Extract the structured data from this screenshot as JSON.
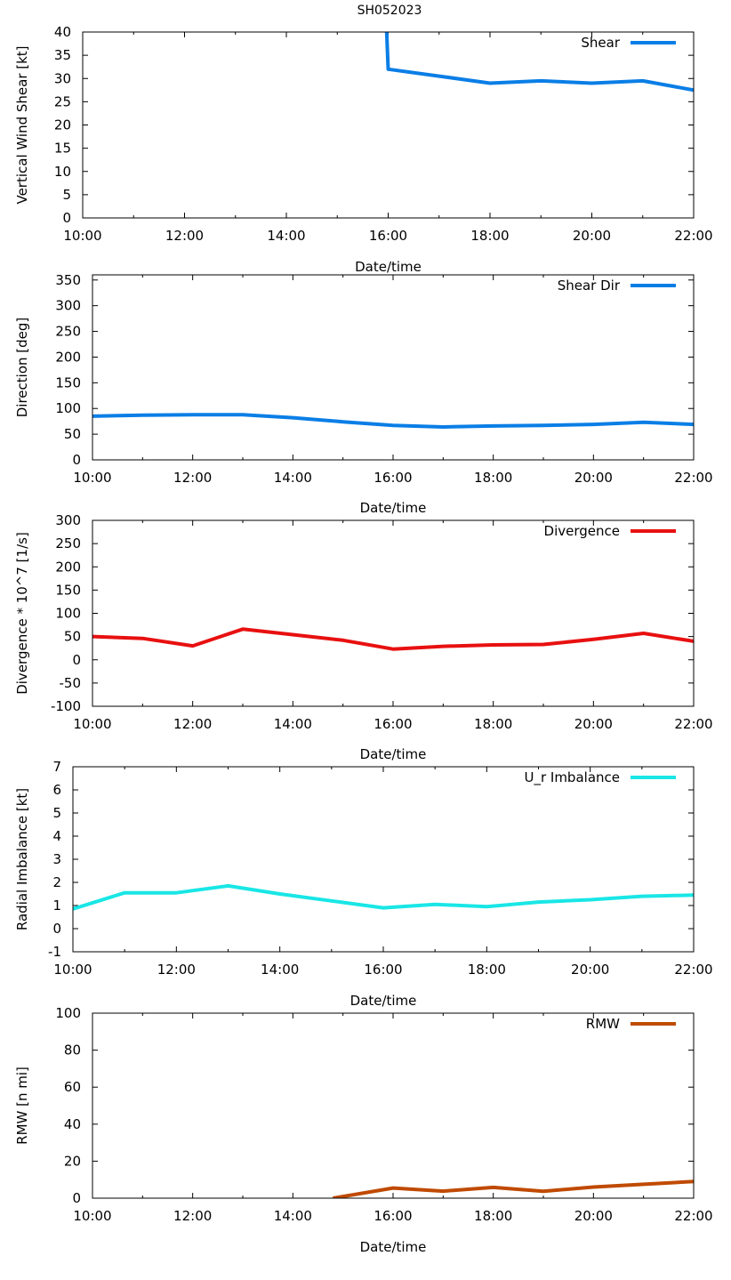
{
  "title": "SH052023",
  "chart_data": [
    {
      "type": "line",
      "title": "SH052023",
      "xlabel": "Date/time",
      "ylabel": "Vertical Wind Shear [kt]",
      "xlim": [
        10,
        22
      ],
      "ylim": [
        0,
        40
      ],
      "xticks": [
        "10:00",
        "12:00",
        "14:00",
        "16:00",
        "18:00",
        "20:00",
        "22:00"
      ],
      "yticks": [
        "0",
        "5",
        "10",
        "15",
        "20",
        "25",
        "30",
        "35",
        "40"
      ],
      "legend_position": "top-right",
      "series": [
        {
          "name": "Shear",
          "color": "#0a7ee6",
          "x": [
            15.97,
            16.0,
            17.0,
            18.0,
            19.0,
            20.0,
            21.0,
            22.0
          ],
          "y": [
            40.0,
            32.0,
            30.5,
            29.0,
            29.5,
            29.0,
            29.5,
            27.5
          ]
        }
      ]
    },
    {
      "type": "line",
      "xlabel": "Date/time",
      "ylabel": "Direction [deg]",
      "xlim": [
        10,
        22
      ],
      "ylim": [
        0,
        360
      ],
      "xticks": [
        "10:00",
        "12:00",
        "14:00",
        "16:00",
        "18:00",
        "20:00",
        "22:00"
      ],
      "yticks": [
        "0",
        "50",
        "100",
        "150",
        "200",
        "250",
        "300",
        "350"
      ],
      "legend_position": "top-right",
      "series": [
        {
          "name": "Shear Dir",
          "color": "#0a7ee6",
          "x": [
            10,
            11,
            12,
            13,
            14,
            15,
            16,
            17,
            18,
            19,
            20,
            21,
            22
          ],
          "y": [
            85,
            87,
            88,
            88,
            82,
            74,
            67,
            64,
            66,
            67,
            69,
            73,
            69
          ]
        }
      ]
    },
    {
      "type": "line",
      "xlabel": "Date/time",
      "ylabel": "Divergence * 10^7 [1/s]",
      "xlim": [
        10,
        22
      ],
      "ylim": [
        -100,
        300
      ],
      "xticks": [
        "10:00",
        "12:00",
        "14:00",
        "16:00",
        "18:00",
        "20:00",
        "22:00"
      ],
      "yticks": [
        "-100",
        "-50",
        "0",
        "50",
        "100",
        "150",
        "200",
        "250",
        "300"
      ],
      "legend_position": "top-right",
      "series": [
        {
          "name": "Divergence",
          "color": "#e81010",
          "x": [
            10,
            11,
            12,
            13,
            14,
            15,
            16,
            17,
            18,
            19,
            20,
            21,
            22
          ],
          "y": [
            50,
            46,
            30,
            66,
            54,
            42,
            23,
            29,
            32,
            33,
            44,
            57,
            40
          ]
        }
      ]
    },
    {
      "type": "line",
      "xlabel": "Date/time",
      "ylabel": "Radial Imbalance [kt]",
      "xlim": [
        10,
        22
      ],
      "ylim": [
        -1,
        7
      ],
      "xticks": [
        "10:00",
        "12:00",
        "14:00",
        "16:00",
        "18:00",
        "20:00",
        "22:00"
      ],
      "yticks": [
        "-1",
        "0",
        "1",
        "2",
        "3",
        "4",
        "5",
        "6",
        "7"
      ],
      "legend_position": "top-right",
      "series": [
        {
          "name": "U_r Imbalance",
          "color": "#19e6e6",
          "x": [
            10,
            11,
            12,
            13,
            14,
            15,
            16,
            17,
            18,
            19,
            20,
            21,
            22
          ],
          "y": [
            0.85,
            1.55,
            1.55,
            1.85,
            1.5,
            1.2,
            0.9,
            1.05,
            0.95,
            1.15,
            1.25,
            1.4,
            1.45
          ]
        }
      ]
    },
    {
      "type": "line",
      "xlabel": "Date/time",
      "ylabel": "RMW [n mi]",
      "xlim": [
        10,
        22
      ],
      "ylim": [
        0,
        100
      ],
      "xticks": [
        "10:00",
        "12:00",
        "14:00",
        "16:00",
        "18:00",
        "20:00",
        "22:00"
      ],
      "yticks": [
        "0",
        "20",
        "40",
        "60",
        "80",
        "100"
      ],
      "legend_position": "top-right",
      "series": [
        {
          "name": "RMW",
          "color": "#c04a00",
          "x": [
            14.8,
            16,
            17,
            18,
            19,
            20,
            21,
            22
          ],
          "y": [
            0,
            5.5,
            3.8,
            5.8,
            3.7,
            6.0,
            7.5,
            9.0
          ]
        }
      ]
    }
  ]
}
